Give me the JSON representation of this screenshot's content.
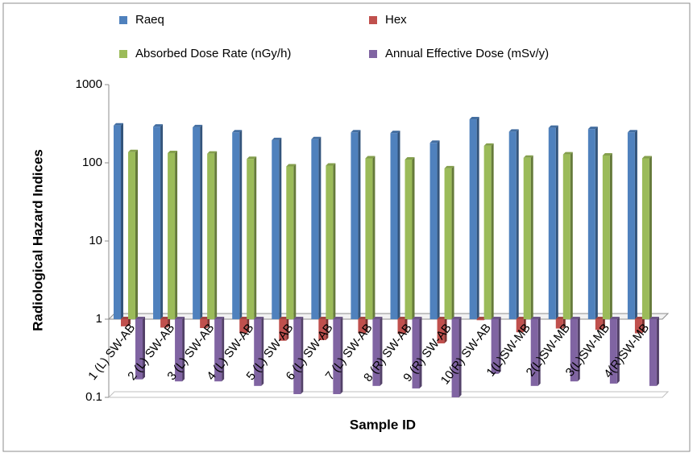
{
  "chart_data": {
    "type": "bar",
    "x_label": "Sample ID",
    "y_label": "Radiological Hazard Indices",
    "categories": [
      "1 (L) SW-AB",
      "2 (L) SW-AB",
      "3 (L) SW-AB",
      "4 (L) SW-AB",
      "5 (L) SW-AB",
      "6 (L) SW-AB",
      "7 (L) SW-AB",
      "8 (R) SW-AB",
      "9 (R) SW-AB",
      "10(R) SW-AB",
      "1(L)SW-MB",
      "2(L)SW-MB",
      "3(L)SW-MB",
      "4(R)SW-MB"
    ],
    "series": [
      {
        "name": "Raeq",
        "color": "#4f81bd",
        "values": [
          300,
          290,
          285,
          245,
          195,
          200,
          245,
          240,
          180,
          360,
          250,
          280,
          270,
          245
        ]
      },
      {
        "name": "Hex",
        "color": "#c0504d",
        "values": [
          0.81,
          0.78,
          0.77,
          0.66,
          0.53,
          0.54,
          0.66,
          0.65,
          0.49,
          0.97,
          0.68,
          0.76,
          0.73,
          0.66
        ]
      },
      {
        "name": "Absorbed Dose Rate (nGy/h)",
        "color": "#9bbb59",
        "values": [
          137,
          133,
          131,
          112,
          90,
          92,
          114,
          110,
          85,
          165,
          116,
          128,
          124,
          114
        ]
      },
      {
        "name": "Annual Effective Dose (mSv/y)",
        "color": "#8064a2",
        "values": [
          0.17,
          0.16,
          0.16,
          0.14,
          0.11,
          0.11,
          0.14,
          0.13,
          0.1,
          0.2,
          0.14,
          0.16,
          0.15,
          0.14
        ]
      }
    ],
    "ylim": [
      0.1,
      1000
    ],
    "yticks": [
      0.1,
      1,
      10,
      100,
      1000
    ],
    "log_scale": true,
    "grid": false,
    "legend": "top"
  }
}
